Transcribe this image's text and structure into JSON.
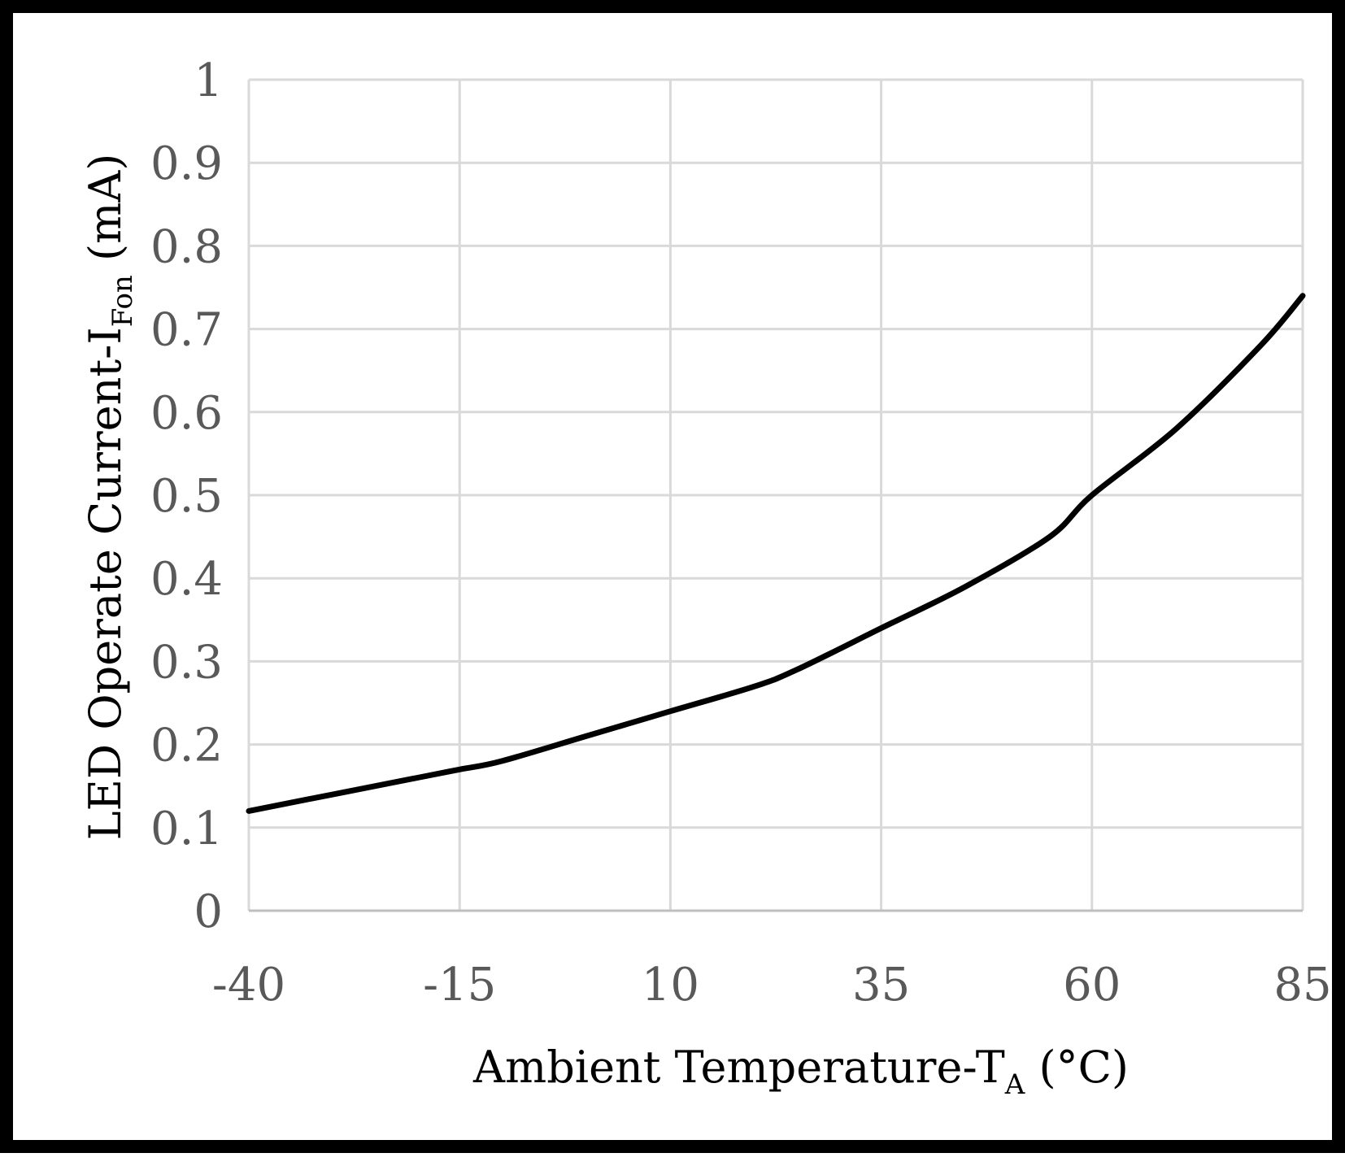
{
  "chart_data": {
    "type": "line",
    "title": "",
    "xlabel": "Ambient Temperature-T",
    "xlabel_sub": "A",
    "xlabel_suffix": " (°C)",
    "ylabel": "LED Operate Current-I",
    "ylabel_sub": "Fon",
    "ylabel_suffix": " (mA)",
    "xlim": [
      -40,
      85
    ],
    "ylim": [
      0,
      1
    ],
    "x_ticks": [
      -40,
      -15,
      10,
      35,
      60,
      85
    ],
    "x_tick_labels": [
      "-40",
      "-15",
      "10",
      "35",
      "60",
      "85"
    ],
    "y_ticks": [
      0,
      0.1,
      0.2,
      0.3,
      0.4,
      0.5,
      0.6,
      0.7,
      0.8,
      0.9,
      1
    ],
    "y_tick_labels": [
      "0",
      "0.1",
      "0.2",
      "0.3",
      "0.4",
      "0.5",
      "0.6",
      "0.7",
      "0.8",
      "0.9",
      "1"
    ],
    "grid": true,
    "legend": "none",
    "series": [
      {
        "name": "I_Fon",
        "x": [
          -40,
          -30,
          -20,
          -15,
          -10,
          0,
          10,
          20,
          25,
          35,
          45,
          55,
          60,
          70,
          80,
          85
        ],
        "y": [
          0.12,
          0.14,
          0.16,
          0.17,
          0.18,
          0.21,
          0.24,
          0.27,
          0.29,
          0.34,
          0.39,
          0.45,
          0.5,
          0.58,
          0.68,
          0.74
        ]
      }
    ]
  }
}
